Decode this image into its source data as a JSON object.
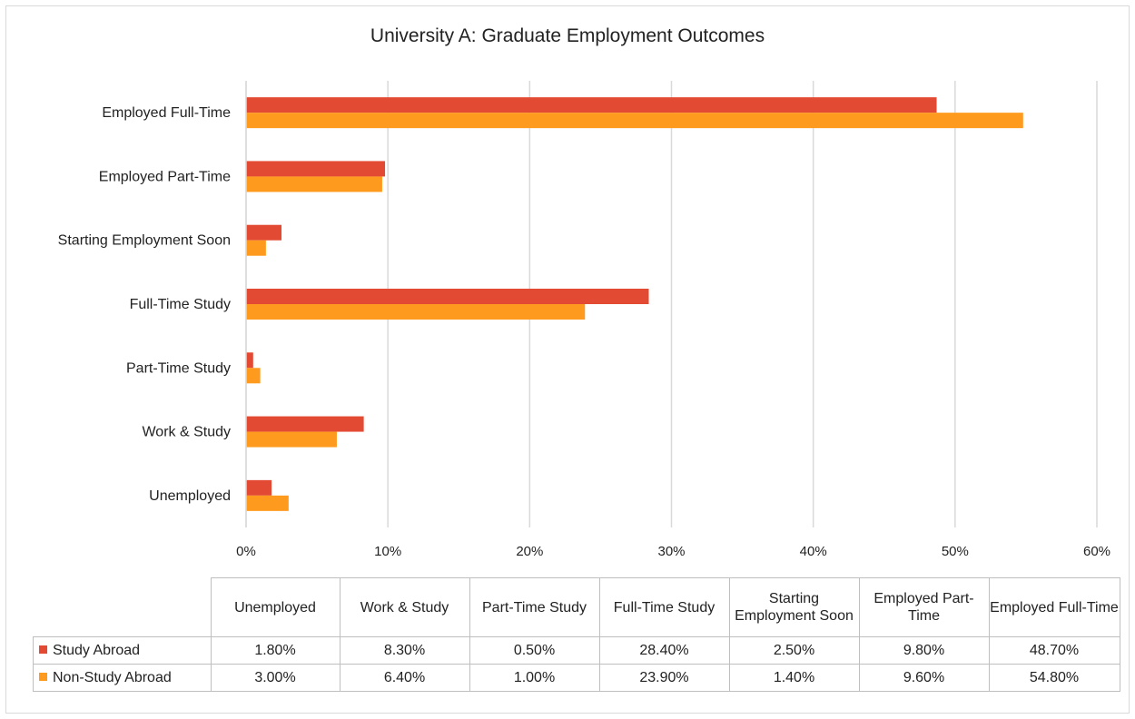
{
  "chart_data": {
    "type": "bar",
    "orientation": "horizontal",
    "title": "University A: Graduate Employment Outcomes",
    "categories": [
      "Unemployed",
      "Work & Study",
      "Part-Time Study",
      "Full-Time Study",
      "Starting Employment Soon",
      "Employed Part-Time",
      "Employed Full-Time"
    ],
    "table_headers": [
      "Unemployed",
      "Work & Study",
      "Part-Time Study",
      "Full-Time Study",
      "Starting Employment Soon",
      "Employed Part-Time",
      "Employed Full-Time"
    ],
    "series": [
      {
        "name": "Study Abroad",
        "color": "#e34a33",
        "values": [
          1.8,
          8.3,
          0.5,
          28.4,
          2.5,
          9.8,
          48.7
        ],
        "labels": [
          "1.80%",
          "8.30%",
          "0.50%",
          "28.40%",
          "2.50%",
          "9.80%",
          "48.70%"
        ]
      },
      {
        "name": "Non-Study Abroad",
        "color": "#fe9a1e",
        "values": [
          3.0,
          6.4,
          1.0,
          23.9,
          1.4,
          9.6,
          54.8
        ],
        "labels": [
          "3.00%",
          "6.40%",
          "1.00%",
          "23.90%",
          "1.40%",
          "9.60%",
          "54.80%"
        ]
      }
    ],
    "x_ticks": [
      "0%",
      "10%",
      "20%",
      "30%",
      "40%",
      "50%",
      "60%"
    ],
    "xlim": [
      0,
      60
    ],
    "grid": true,
    "legend": "data table"
  }
}
